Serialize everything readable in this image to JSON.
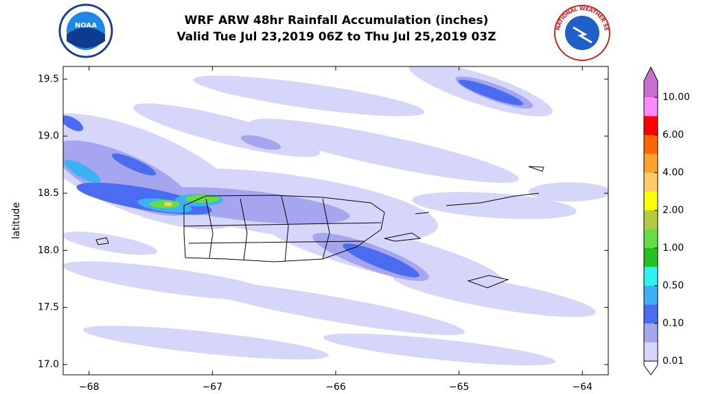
{
  "logos": {
    "left": "NOAA",
    "right": "NATIONAL WEATHER SERVICE"
  },
  "chart_data": {
    "type": "map",
    "title": "WRF ARW 48hr Rainfall Accumulation (inches)",
    "subtitle": "Valid Tue Jul 23,2019 06Z to Thu Jul 25,2019 03Z",
    "y_label": "latitude",
    "xlim": [
      -68.21,
      -63.79
    ],
    "ylim": [
      16.91,
      19.61
    ],
    "xticks": [
      {
        "value": -68,
        "label": "−68"
      },
      {
        "value": -67,
        "label": "−67"
      },
      {
        "value": -66,
        "label": "−66"
      },
      {
        "value": -65,
        "label": "−65"
      },
      {
        "value": -64,
        "label": "−64"
      }
    ],
    "yticks": [
      {
        "value": 17,
        "label": "17.0"
      },
      17.5,
      {
        "value": 18,
        "label": "18.0"
      },
      18.5,
      {
        "value": 19,
        "label": "19.0"
      },
      19.5
    ],
    "colorbar": {
      "levels": [
        {
          "value": 0.01,
          "label": "0.01"
        },
        {
          "value": 0.1,
          "label": "0.10"
        },
        {
          "value": 0.5,
          "label": "0.50"
        },
        {
          "value": 1,
          "label": "1.00"
        },
        {
          "value": 2,
          "label": "2.00"
        },
        {
          "value": 4,
          "label": "4.00"
        },
        {
          "value": 6,
          "label": "6.00"
        },
        {
          "value": 10,
          "label": "10.00"
        }
      ],
      "colors": [
        "#d6d6fa",
        "#a6a6f0",
        "#4a6cf0",
        "#3cb2f5",
        "#30f2ee",
        "#22c222",
        "#66dd44",
        "#b4cc44",
        "#ffff00",
        "#ffcc66",
        "#ffa030",
        "#ff6600",
        "#ff0000",
        "#ff88ff"
      ],
      "over_color": "#c870d0",
      "under_color": "#ffffff"
    }
  }
}
